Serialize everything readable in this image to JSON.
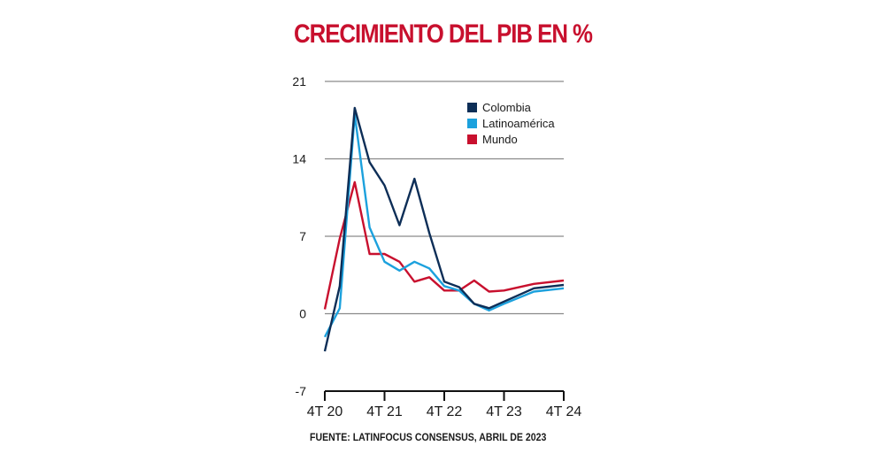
{
  "title": "CRECIMIENTO DEL PIB EN %",
  "source": "FUENTE: LATINFOCUS CONSENSUS, ABRIL DE 2023",
  "chart_data": {
    "type": "line",
    "title": "CRECIMIENTO DEL PIB EN %",
    "xlabel": "",
    "ylabel": "",
    "ylim": [
      -7,
      21
    ],
    "yticks": [
      21,
      14,
      7,
      0,
      -7
    ],
    "ytick_labels": [
      "21",
      "14",
      "7",
      "0",
      "-7"
    ],
    "x": [
      0,
      1,
      2,
      3,
      4,
      5,
      6,
      7,
      8,
      9,
      10,
      11,
      12,
      13,
      14,
      15,
      16
    ],
    "xticks": [
      0,
      4,
      8,
      12,
      16
    ],
    "xtick_labels": [
      "4T 20",
      "4T 21",
      "4T 22",
      "4T 23",
      "4T 24"
    ],
    "legend_position": "top-right",
    "series": [
      {
        "name": "Colombia",
        "color": "#0d2e57",
        "x": [
          0,
          1,
          2,
          3,
          4,
          5,
          6,
          7,
          8,
          9,
          10,
          11,
          12,
          14,
          16
        ],
        "values": [
          -3.4,
          2.5,
          18.6,
          13.7,
          11.6,
          8.0,
          12.2,
          7.3,
          2.9,
          2.4,
          0.9,
          0.5,
          1.1,
          2.3,
          2.6
        ]
      },
      {
        "name": "Latinoamérica",
        "color": "#1ca1dd",
        "x": [
          0,
          1,
          2,
          3,
          4,
          5,
          6,
          7,
          8,
          9,
          10,
          11,
          12,
          14,
          16
        ],
        "values": [
          -2.1,
          0.5,
          18.0,
          7.8,
          4.7,
          3.9,
          4.7,
          4.1,
          2.5,
          2.1,
          0.9,
          0.3,
          0.9,
          2.0,
          2.3
        ]
      },
      {
        "name": "Mundo",
        "color": "#c8102e",
        "x": [
          0,
          1,
          2,
          3,
          4,
          5,
          6,
          7,
          8,
          9,
          10,
          11,
          12,
          14,
          16
        ],
        "values": [
          0.4,
          6.8,
          11.9,
          5.4,
          5.4,
          4.7,
          2.9,
          3.3,
          2.1,
          2.1,
          3.0,
          2.0,
          2.1,
          2.7,
          3.0
        ]
      }
    ]
  }
}
